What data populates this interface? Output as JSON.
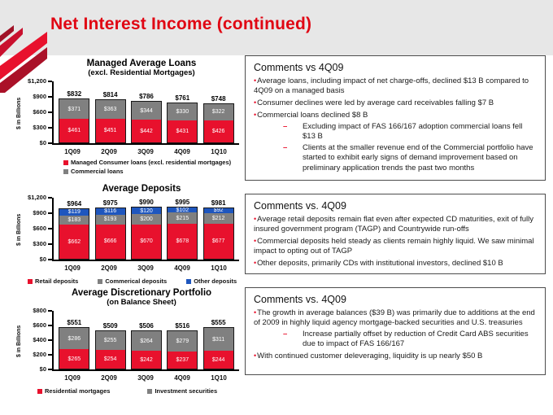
{
  "page": {
    "title": "Net Interest Income (continued)"
  },
  "colors": {
    "title_red": "#e00613",
    "bar_red": "#e8112d",
    "bar_gray": "#808080",
    "bar_blue": "#1e56be",
    "header_bg": "#e7e7e7"
  },
  "chart_data": [
    {
      "type": "bar",
      "stacked": true,
      "title": "Managed Average Loans",
      "subtitle": "(excl. Residential Mortgages)",
      "ylabel": "$ in Billions",
      "xlabel": "",
      "categories": [
        "1Q09",
        "2Q09",
        "3Q09",
        "4Q09",
        "1Q10"
      ],
      "series": [
        {
          "name": "Managed Consumer loans (excl. residential mortgages)",
          "color": "#e8112d",
          "values": [
            461,
            451,
            442,
            431,
            426
          ]
        },
        {
          "name": "Commercial loans",
          "color": "#808080",
          "values": [
            371,
            363,
            344,
            330,
            322
          ]
        }
      ],
      "totals": [
        832,
        814,
        786,
        761,
        748
      ],
      "ylim": [
        0,
        1200
      ],
      "yticks": [
        "$0",
        "$300",
        "$600",
        "$900",
        "$1,200"
      ],
      "grid": false,
      "legend_position": "bottom-left-column"
    },
    {
      "type": "bar",
      "stacked": true,
      "title": "Average Deposits",
      "subtitle": "",
      "ylabel": "$ in Billions",
      "xlabel": "",
      "categories": [
        "1Q09",
        "2Q09",
        "3Q09",
        "4Q09",
        "1Q10"
      ],
      "series": [
        {
          "name": "Retail deposits",
          "color": "#e8112d",
          "values": [
            662,
            666,
            670,
            678,
            677
          ]
        },
        {
          "name": "Commerical deposits",
          "color": "#808080",
          "values": [
            183,
            193,
            200,
            215,
            212
          ]
        },
        {
          "name": "Other deposits",
          "color": "#1e56be",
          "values": [
            119,
            116,
            120,
            102,
            92
          ]
        }
      ],
      "totals": [
        964,
        975,
        990,
        995,
        981
      ],
      "ylim": [
        0,
        1200
      ],
      "yticks": [
        "$0",
        "$300",
        "$600",
        "$900",
        "$1,200"
      ],
      "grid": false,
      "legend_position": "bottom-row"
    },
    {
      "type": "bar",
      "stacked": true,
      "title": "Average Discretionary Portfolio",
      "subtitle": "(on Balance Sheet)",
      "ylabel": "$ in Billions",
      "xlabel": "",
      "categories": [
        "1Q09",
        "2Q09",
        "3Q09",
        "4Q09",
        "1Q10"
      ],
      "series": [
        {
          "name": "Residential mortgages",
          "color": "#e8112d",
          "values": [
            265,
            254,
            242,
            237,
            244
          ]
        },
        {
          "name": "Investment securities",
          "color": "#808080",
          "values": [
            286,
            255,
            264,
            279,
            311
          ]
        }
      ],
      "totals": [
        551,
        509,
        506,
        516,
        555
      ],
      "ylim": [
        0,
        800
      ],
      "yticks": [
        "$0",
        "$200",
        "$400",
        "$600",
        "$800"
      ],
      "grid": false,
      "legend_position": "bottom-row"
    }
  ],
  "comments": [
    {
      "title": "Comments vs 4Q09",
      "bullets": [
        {
          "level": 1,
          "text": "Average loans, including impact of net charge-offs, declined $13 B compared to 4Q09 on a managed basis"
        },
        {
          "level": 1,
          "text": "Consumer declines were led by average card receivables falling $7 B"
        },
        {
          "level": 1,
          "text": "Commercial loans declined $8 B"
        },
        {
          "level": 2,
          "text": "Excluding impact of FAS 166/167 adoption commercial loans fell $13 B"
        },
        {
          "level": 2,
          "text": "Clients at the smaller revenue end of the Commercial portfolio have started to exhibit early signs of demand improvement based on preliminary application trends the past two months"
        }
      ]
    },
    {
      "title": "Comments vs. 4Q09",
      "bullets": [
        {
          "level": 1,
          "text": "Average retail deposits remain flat even after expected CD maturities, exit of fully insured government program (TAGP) and Countrywide run-offs"
        },
        {
          "level": 1,
          "text": "Commercial deposits held steady as clients remain highly liquid. We saw minimal impact to opting out of TAGP"
        },
        {
          "level": 1,
          "text": "Other deposits, primarily CDs with institutional investors, declined $10 B"
        }
      ]
    },
    {
      "title": "Comments vs. 4Q09",
      "bullets": [
        {
          "level": 1,
          "text": "The growth in average balances ($39 B) was primarily due to additions at the end of 2009 in highly liquid agency mortgage-backed securities and U.S. treasuries"
        },
        {
          "level": 2,
          "text": "Increase partially offset by reduction of Credit Card ABS securities due to impact of FAS 166/167"
        },
        {
          "level": 1,
          "text": "With continued customer deleveraging, liquidity is up nearly $50 B"
        }
      ]
    }
  ]
}
